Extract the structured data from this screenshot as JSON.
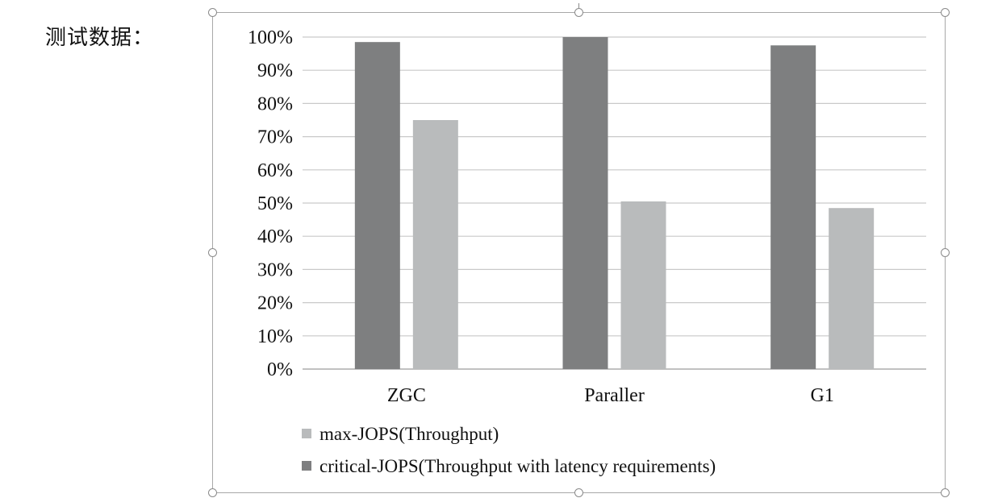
{
  "page": {
    "label": "测试数据："
  },
  "chart_data": {
    "type": "bar",
    "categories": [
      "ZGC",
      "Paraller",
      "G1"
    ],
    "series": [
      {
        "name": "critical-JOPS(Throughput with latency requirements)",
        "color": "#7e7f80",
        "values": [
          98.5,
          100,
          97.5
        ]
      },
      {
        "name": "max-JOPS(Throughput)",
        "color": "#b9bbbc",
        "values": [
          75,
          50.5,
          48.5
        ]
      }
    ],
    "ylim": [
      0,
      100
    ],
    "yticks": [
      "0%",
      "10%",
      "20%",
      "30%",
      "40%",
      "50%",
      "60%",
      "70%",
      "80%",
      "90%",
      "100%"
    ],
    "grid": true,
    "legend_position": "bottom-left",
    "legend_order": [
      1,
      0
    ],
    "gridline_color": "#c9c9c9",
    "axis_color": "#9c9c9c"
  }
}
